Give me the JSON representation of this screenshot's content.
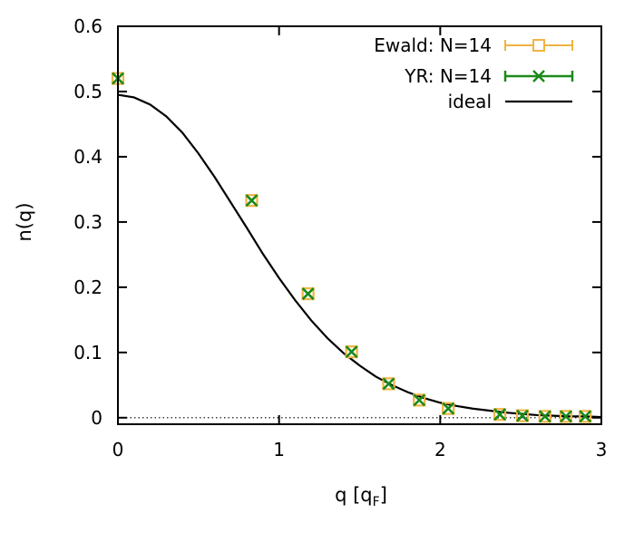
{
  "chart_data": {
    "type": "scatter",
    "xlabel": {
      "main": "q [q",
      "sub": "F",
      "end": "]"
    },
    "ylabel": "n(q)",
    "xlim": [
      0,
      3
    ],
    "ylim": [
      -0.01,
      0.6
    ],
    "xticks": [
      0,
      1,
      2,
      3
    ],
    "xtick_labels": [
      "0",
      "1",
      "2",
      "3"
    ],
    "yticks": [
      0,
      0.1,
      0.2,
      0.3,
      0.4,
      0.5,
      0.6
    ],
    "ytick_labels": [
      "0",
      "0.1",
      "0.2",
      "0.3",
      "0.4",
      "0.5",
      "0.6"
    ],
    "legend_position": "top-right",
    "zero_line": "dotted",
    "series": [
      {
        "name": "Ewald: N=14",
        "marker": "open-square",
        "color": "#f0b443",
        "x": [
          0,
          0.83,
          1.18,
          1.45,
          1.68,
          1.87,
          2.05,
          2.37,
          2.51,
          2.65,
          2.78,
          2.9
        ],
        "y": [
          0.52,
          0.333,
          0.19,
          0.101,
          0.052,
          0.027,
          0.014,
          0.005,
          0.003,
          0.002,
          0.002,
          0.002
        ]
      },
      {
        "name": "YR: N=14",
        "marker": "x",
        "color": "#1a8a1a",
        "x": [
          0,
          0.83,
          1.18,
          1.45,
          1.68,
          1.87,
          2.05,
          2.37,
          2.51,
          2.65,
          2.78,
          2.9
        ],
        "y": [
          0.52,
          0.333,
          0.19,
          0.101,
          0.052,
          0.027,
          0.014,
          0.005,
          0.003,
          0.002,
          0.002,
          0.002
        ]
      },
      {
        "name": "ideal",
        "style": "line",
        "color": "#000000",
        "x": [
          0,
          0.1,
          0.2,
          0.3,
          0.4,
          0.5,
          0.6,
          0.7,
          0.8,
          0.9,
          1.0,
          1.1,
          1.2,
          1.3,
          1.4,
          1.5,
          1.6,
          1.7,
          1.8,
          1.9,
          2.0,
          2.1,
          2.2,
          2.3,
          2.4,
          2.5,
          2.6,
          2.7,
          2.8,
          2.9,
          3.0
        ],
        "y": [
          0.495,
          0.491,
          0.48,
          0.462,
          0.437,
          0.405,
          0.369,
          0.33,
          0.291,
          0.251,
          0.214,
          0.18,
          0.149,
          0.122,
          0.099,
          0.08,
          0.063,
          0.05,
          0.039,
          0.03,
          0.023,
          0.018,
          0.014,
          0.011,
          0.008,
          0.006,
          0.004,
          0.003,
          0.002,
          0.002,
          0.001
        ]
      }
    ]
  }
}
